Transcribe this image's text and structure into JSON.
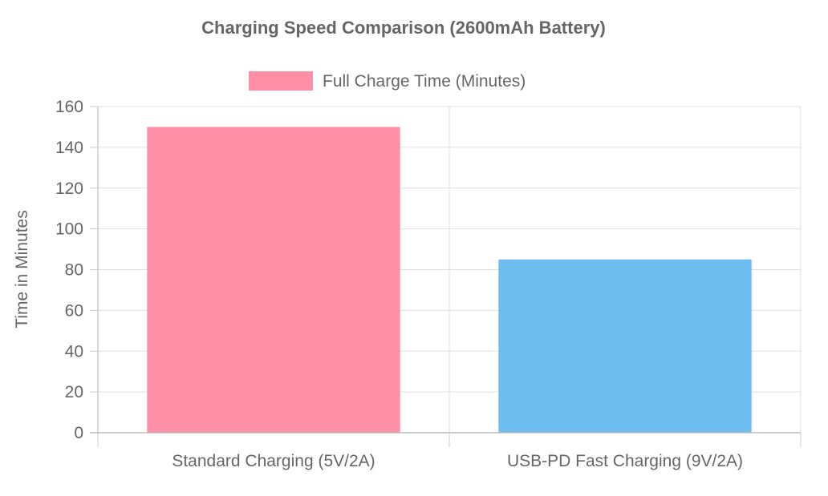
{
  "chart_data": {
    "type": "bar",
    "title": "Charging Speed Comparison (2600mAh Battery)",
    "ylabel": "Time in Minutes",
    "xlabel": "",
    "categories": [
      "Standard Charging (5V/2A)",
      "USB-PD Fast Charging (9V/2A)"
    ],
    "series": [
      {
        "name": "Full Charge Time (Minutes)",
        "values": [
          150,
          85
        ],
        "colors": [
          "#ff8fa6",
          "#6dbdee"
        ]
      }
    ],
    "ylim": [
      0,
      160
    ],
    "yticks": [
      0,
      20,
      40,
      60,
      80,
      100,
      120,
      140,
      160
    ],
    "grid": true,
    "legend_position": "top-center"
  }
}
